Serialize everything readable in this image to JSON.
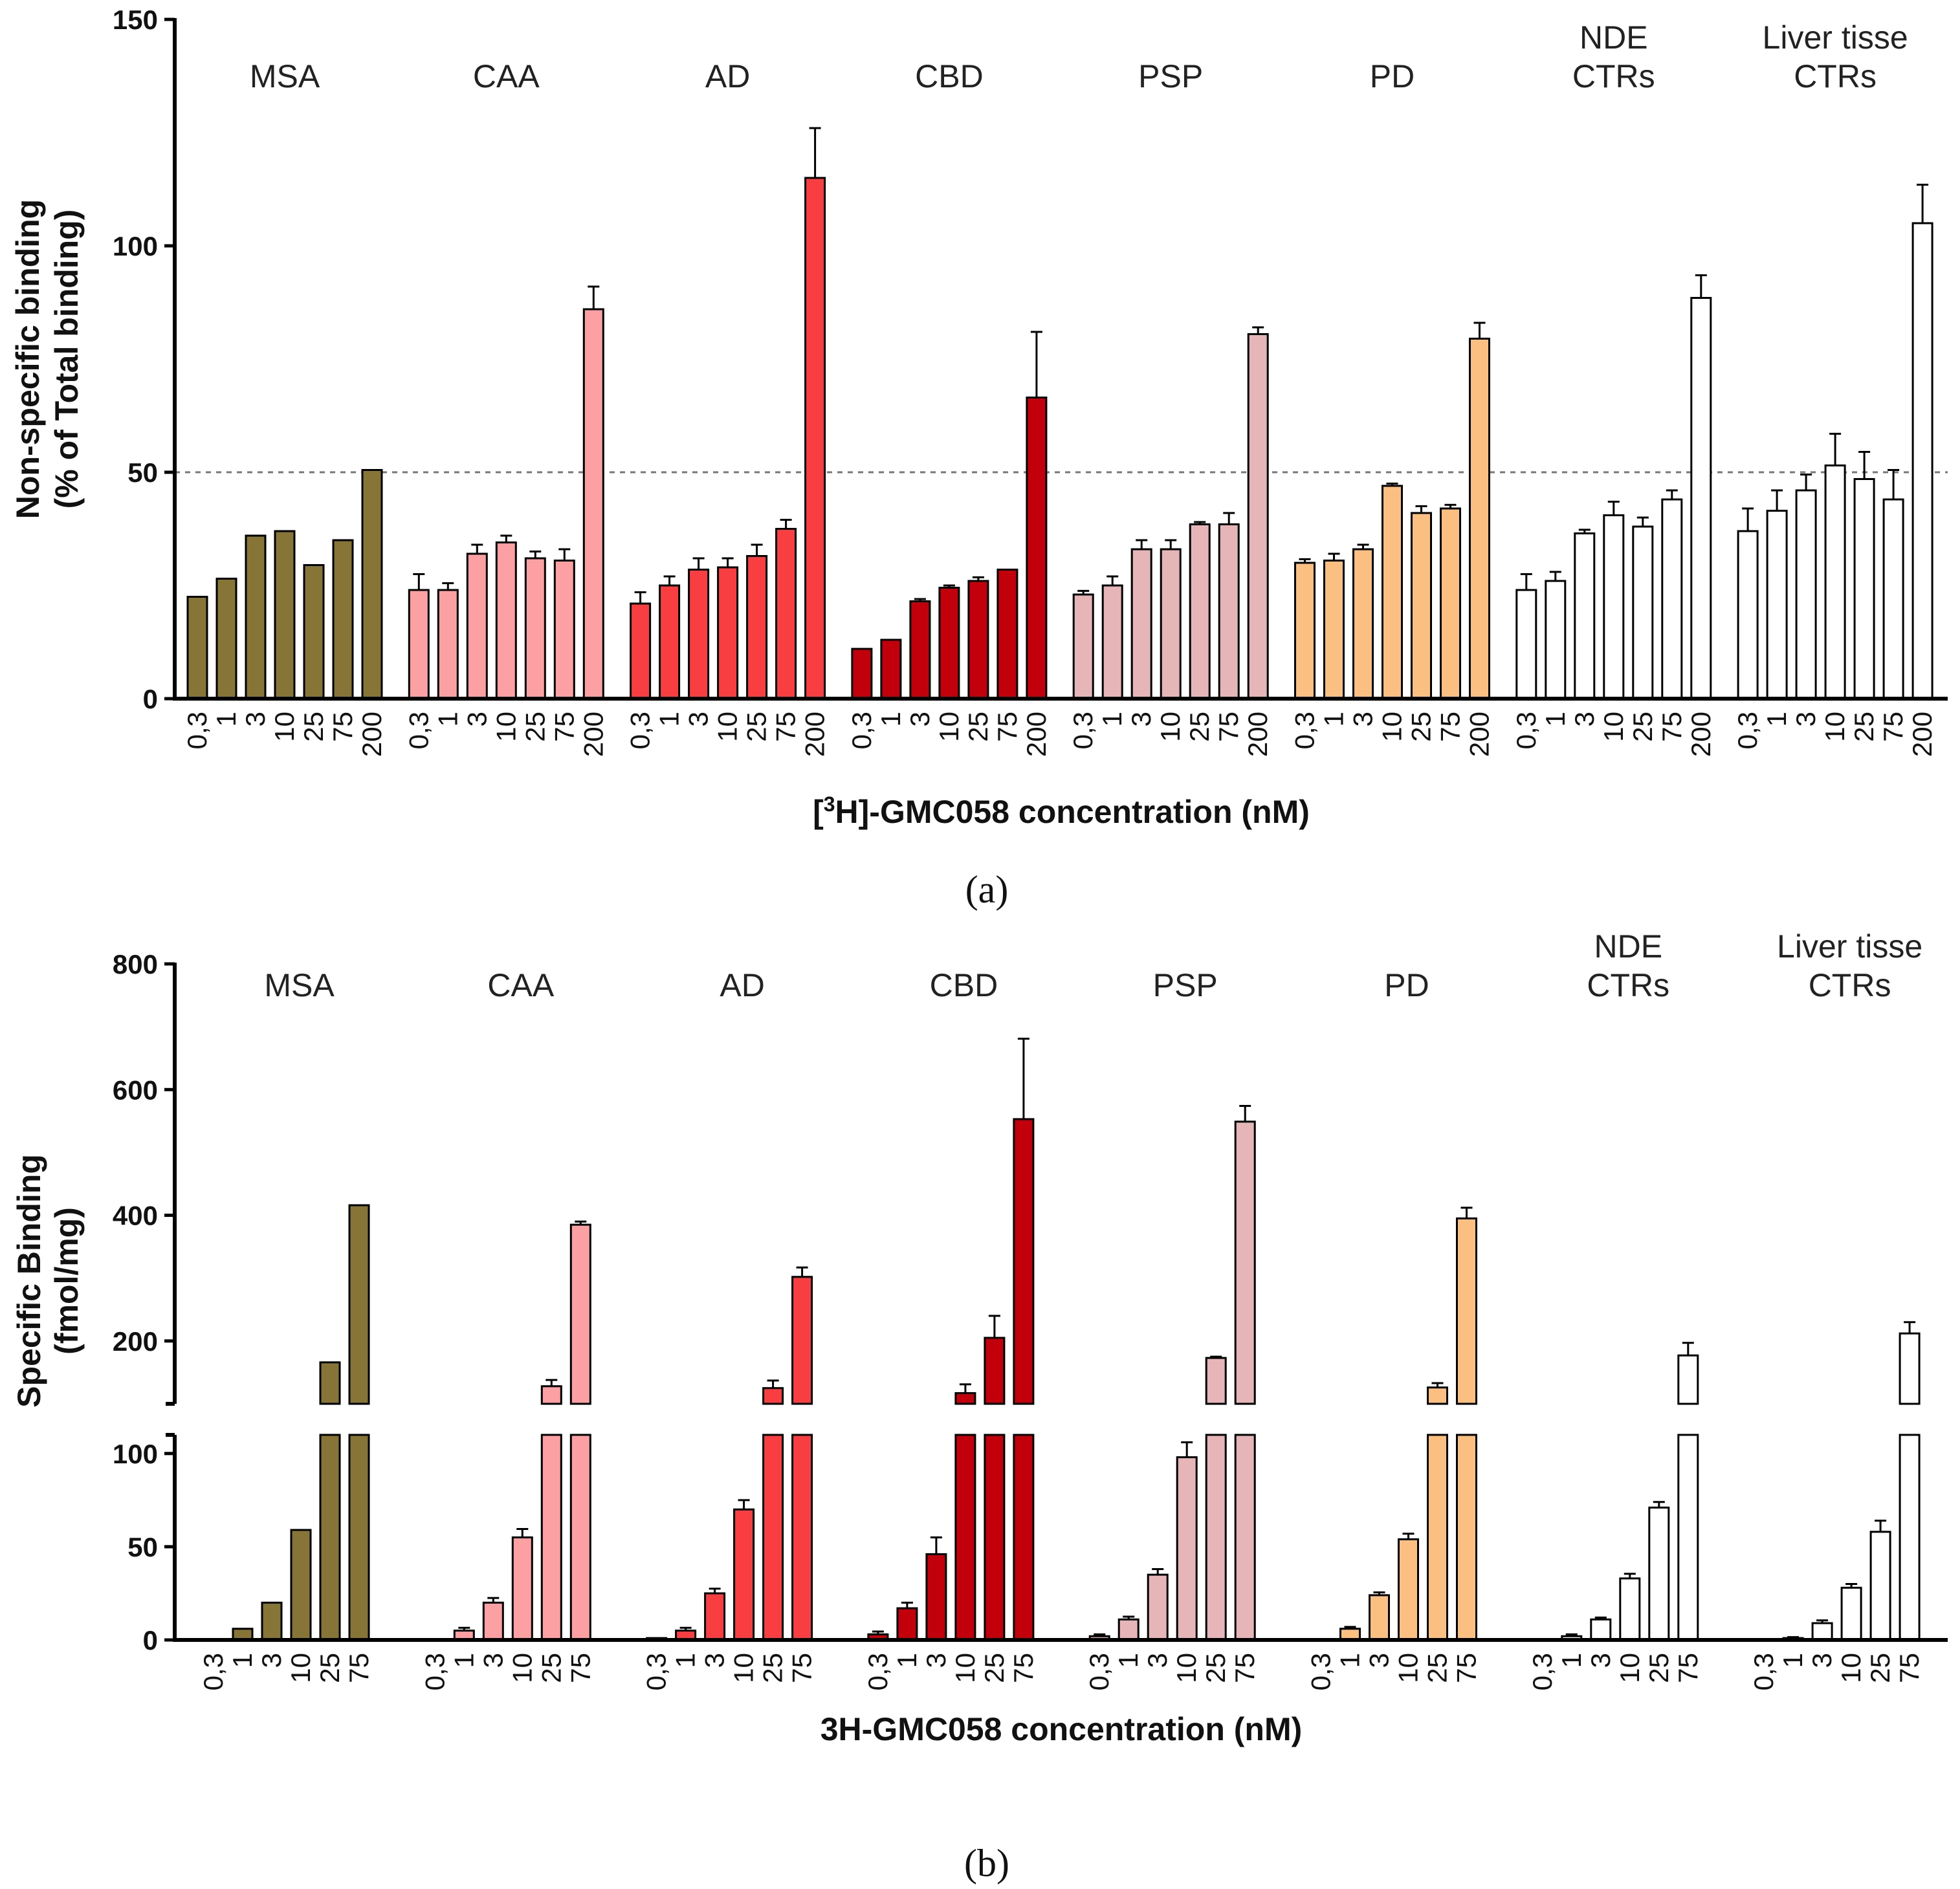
{
  "colors": {
    "MSA": "#867536",
    "CAA": "#fca0a4",
    "AD": "#f83e40",
    "CBD": "#c2000b",
    "PSP": "#e6b5b7",
    "PD": "#fcbf82",
    "NDE CTRs": "#ffffff",
    "Liver tisse CTRs": "#ffffff"
  },
  "chart_data": [
    {
      "panel": "a",
      "panel_label": "(a)",
      "type": "bar",
      "ylabel": [
        "Non-specific binding",
        "(% of Total binding)"
      ],
      "xlabel": "[3H]-GMC058 concentration (nM)",
      "xlabel_parts": {
        "pre": "[",
        "sup": "3",
        "post": "H]-GMC058 concentration (nM)"
      },
      "ylim": [
        0,
        150
      ],
      "yticks": [
        "0",
        "50",
        "100",
        "150"
      ],
      "ytick_values": [
        0,
        50,
        100,
        150
      ],
      "reference_line": 50,
      "categories": [
        "0,3",
        "1",
        "3",
        "10",
        "25",
        "75",
        "200"
      ],
      "groups": [
        {
          "name": "MSA",
          "label_lines": [
            "MSA"
          ],
          "values": [
            22.5,
            26.5,
            36,
            37,
            29.5,
            35,
            50.5
          ],
          "errors": [
            0,
            0,
            0,
            0,
            0,
            0,
            0
          ]
        },
        {
          "name": "CAA",
          "label_lines": [
            "CAA"
          ],
          "values": [
            24,
            24,
            32,
            34.5,
            31,
            30.5,
            86
          ],
          "errors": [
            3.5,
            1.5,
            2,
            1.5,
            1.5,
            2.5,
            5
          ]
        },
        {
          "name": "AD",
          "label_lines": [
            "AD"
          ],
          "values": [
            21,
            25,
            28.5,
            29,
            31.5,
            37.5,
            115
          ],
          "errors": [
            2.5,
            2,
            2.5,
            2,
            2.5,
            2,
            11
          ]
        },
        {
          "name": "CBD",
          "label_lines": [
            "CBD"
          ],
          "values": [
            11,
            13,
            21.5,
            24.5,
            26,
            28.5,
            66.5
          ],
          "errors": [
            0,
            0,
            0.5,
            0.5,
            0.8,
            0,
            14.5
          ]
        },
        {
          "name": "PSP",
          "label_lines": [
            "PSP"
          ],
          "values": [
            23,
            25,
            33,
            33,
            38.5,
            38.5,
            80.5
          ],
          "errors": [
            0.8,
            2,
            2,
            2,
            0.5,
            2.5,
            1.5
          ]
        },
        {
          "name": "PD",
          "label_lines": [
            "PD"
          ],
          "values": [
            30,
            30.5,
            33,
            47,
            41,
            42,
            79.5
          ],
          "errors": [
            0.8,
            1.5,
            1,
            0.5,
            1.5,
            0.8,
            3.5
          ]
        },
        {
          "name": "NDE CTRs",
          "label_lines": [
            "NDE",
            "CTRs"
          ],
          "values": [
            24,
            26,
            36.5,
            40.5,
            38,
            44,
            88.5
          ],
          "errors": [
            3.5,
            2,
            0.8,
            3,
            2,
            2,
            5
          ]
        },
        {
          "name": "Liver tisse CTRs",
          "label_lines": [
            "Liver tisse",
            "CTRs"
          ],
          "values": [
            37,
            41.5,
            46,
            51.5,
            48.5,
            44,
            105
          ],
          "errors": [
            5,
            4.5,
            3.5,
            7,
            6,
            6.5,
            8.5
          ]
        }
      ]
    },
    {
      "panel": "b",
      "panel_label": "(b)",
      "type": "bar",
      "ylabel": [
        "Specific Binding",
        "(fmol/mg)"
      ],
      "xlabel": "3H-GMC058 concentration (nM)",
      "broken_axis": {
        "lower": [
          0,
          110
        ],
        "upper": [
          100,
          800
        ]
      },
      "yticks_lower": [
        "0",
        "50",
        "100"
      ],
      "ytick_values_lower": [
        0,
        50,
        100
      ],
      "yticks_upper": [
        "200",
        "400",
        "600",
        "800"
      ],
      "ytick_values_upper": [
        200,
        400,
        600,
        800
      ],
      "categories": [
        "0,3",
        "1",
        "3",
        "10",
        "25",
        "75"
      ],
      "groups": [
        {
          "name": "MSA",
          "label_lines": [
            "MSA"
          ],
          "values": [
            0,
            6,
            20,
            59,
            166,
            416
          ],
          "errors": [
            0,
            0,
            0,
            0,
            0,
            0
          ]
        },
        {
          "name": "CAA",
          "label_lines": [
            "CAA"
          ],
          "values": [
            0,
            5,
            20,
            55,
            128,
            385
          ],
          "errors": [
            0,
            1.5,
            2.5,
            4.5,
            10,
            5
          ]
        },
        {
          "name": "AD",
          "label_lines": [
            "AD"
          ],
          "values": [
            1,
            5,
            25,
            70,
            125,
            302
          ],
          "errors": [
            0,
            1.5,
            2.5,
            5,
            12,
            15
          ]
        },
        {
          "name": "CBD",
          "label_lines": [
            "CBD"
          ],
          "values": [
            3,
            17,
            46,
            117,
            205,
            553
          ],
          "errors": [
            1.5,
            3,
            9,
            14,
            35,
            128
          ]
        },
        {
          "name": "PSP",
          "label_lines": [
            "PSP"
          ],
          "values": [
            2,
            11,
            35,
            98,
            173,
            549
          ],
          "errors": [
            1,
            1.5,
            3,
            8,
            2,
            25
          ]
        },
        {
          "name": "PD",
          "label_lines": [
            "PD"
          ],
          "values": [
            0,
            6,
            24,
            54,
            126,
            395
          ],
          "errors": [
            0,
            1,
            1.5,
            3,
            7,
            17
          ]
        },
        {
          "name": "NDE CTRs",
          "label_lines": [
            "NDE",
            "CTRs"
          ],
          "values": [
            0,
            2,
            11,
            33,
            71,
            177
          ],
          "errors": [
            0,
            1,
            1,
            2.5,
            3,
            20
          ]
        },
        {
          "name": "Liver tisse CTRs",
          "label_lines": [
            "Liver tisse",
            "CTRs"
          ],
          "values": [
            0,
            1,
            9,
            28,
            58,
            212
          ],
          "errors": [
            0,
            0.5,
            1.5,
            2,
            6,
            18
          ]
        }
      ]
    }
  ]
}
